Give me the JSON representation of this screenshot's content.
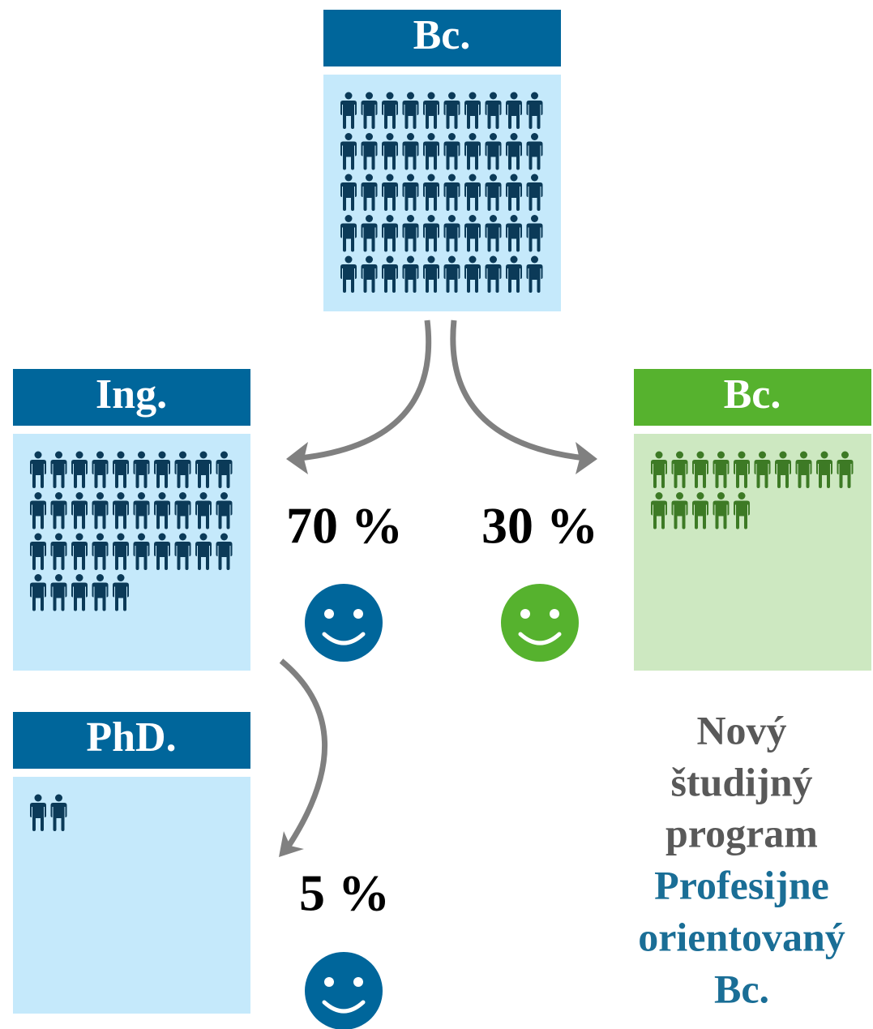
{
  "boxes": [
    {
      "label": "Bc.",
      "people": 50
    },
    {
      "label": "Ing.",
      "people": 35
    },
    {
      "label": "Bc.",
      "people": 15
    },
    {
      "label": "PhD.",
      "people": 2
    }
  ],
  "flows": [
    {
      "label": "70 %"
    },
    {
      "label": "30 %"
    },
    {
      "label": "5 %"
    }
  ],
  "note": {
    "lines": [
      "Nový",
      "študijný",
      "program"
    ],
    "highlight": [
      "Profesijne",
      "orientovaný",
      "Bc."
    ]
  }
}
